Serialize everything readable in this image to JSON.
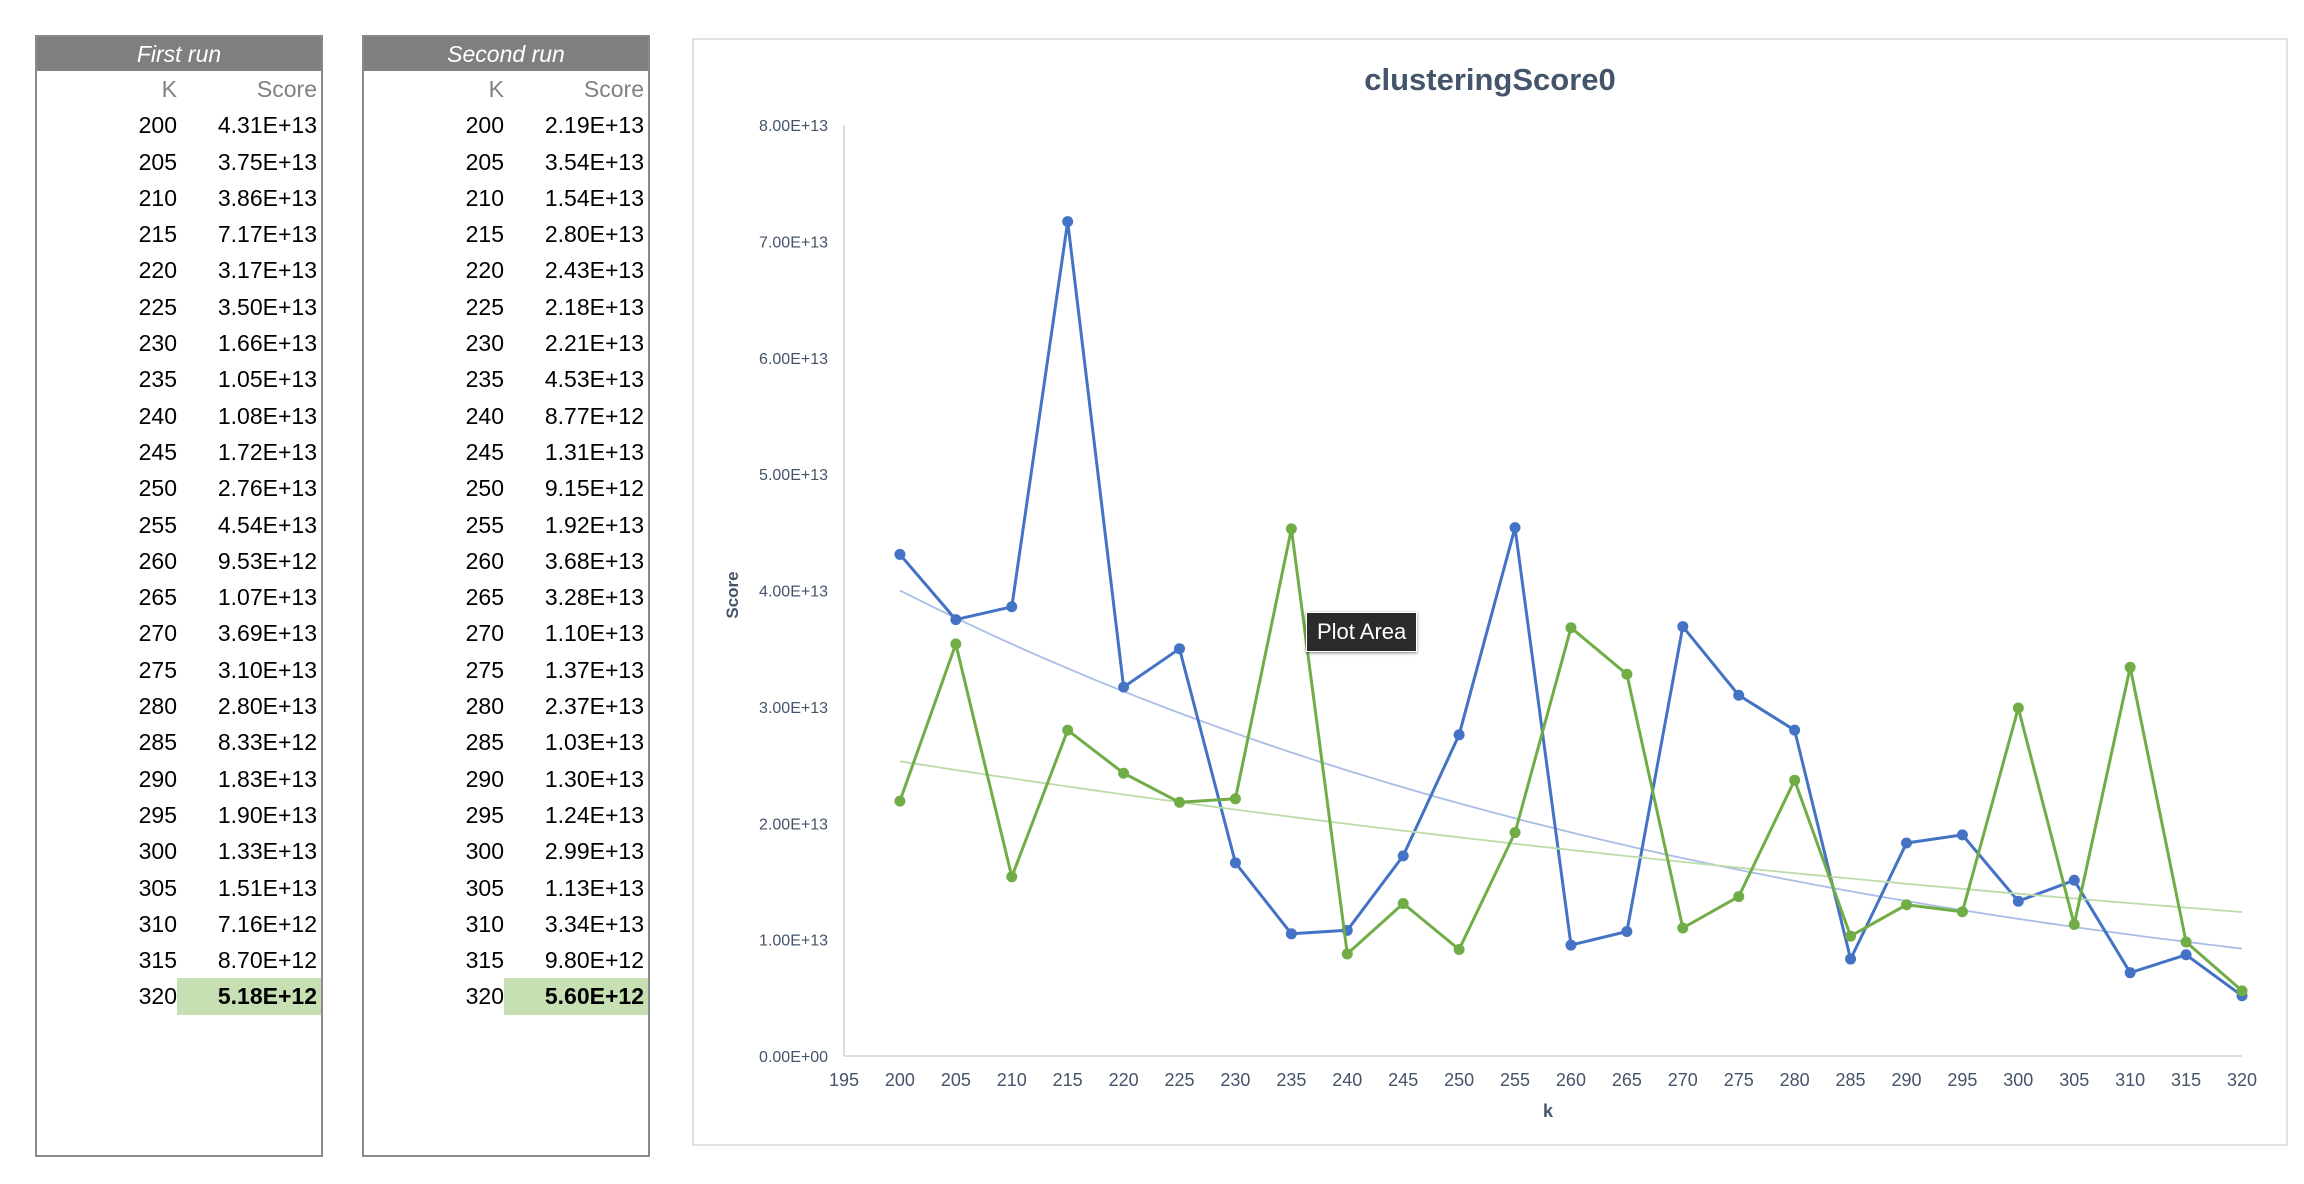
{
  "tables": [
    {
      "title": "First run",
      "col_k": "K",
      "col_score": "Score",
      "rows": [
        {
          "k": "200",
          "score": "4.31E+13"
        },
        {
          "k": "205",
          "score": "3.75E+13"
        },
        {
          "k": "210",
          "score": "3.86E+13"
        },
        {
          "k": "215",
          "score": "7.17E+13"
        },
        {
          "k": "220",
          "score": "3.17E+13"
        },
        {
          "k": "225",
          "score": "3.50E+13"
        },
        {
          "k": "230",
          "score": "1.66E+13"
        },
        {
          "k": "235",
          "score": "1.05E+13"
        },
        {
          "k": "240",
          "score": "1.08E+13"
        },
        {
          "k": "245",
          "score": "1.72E+13"
        },
        {
          "k": "250",
          "score": "2.76E+13"
        },
        {
          "k": "255",
          "score": "4.54E+13"
        },
        {
          "k": "260",
          "score": "9.53E+12"
        },
        {
          "k": "265",
          "score": "1.07E+13"
        },
        {
          "k": "270",
          "score": "3.69E+13"
        },
        {
          "k": "275",
          "score": "3.10E+13"
        },
        {
          "k": "280",
          "score": "2.80E+13"
        },
        {
          "k": "285",
          "score": "8.33E+12"
        },
        {
          "k": "290",
          "score": "1.83E+13"
        },
        {
          "k": "295",
          "score": "1.90E+13"
        },
        {
          "k": "300",
          "score": "1.33E+13"
        },
        {
          "k": "305",
          "score": "1.51E+13"
        },
        {
          "k": "310",
          "score": "7.16E+12"
        },
        {
          "k": "315",
          "score": "8.70E+12"
        },
        {
          "k": "320",
          "score": "5.18E+12"
        }
      ]
    },
    {
      "title": "Second run",
      "col_k": "K",
      "col_score": "Score",
      "rows": [
        {
          "k": "200",
          "score": "2.19E+13"
        },
        {
          "k": "205",
          "score": "3.54E+13"
        },
        {
          "k": "210",
          "score": "1.54E+13"
        },
        {
          "k": "215",
          "score": "2.80E+13"
        },
        {
          "k": "220",
          "score": "2.43E+13"
        },
        {
          "k": "225",
          "score": "2.18E+13"
        },
        {
          "k": "230",
          "score": "2.21E+13"
        },
        {
          "k": "235",
          "score": "4.53E+13"
        },
        {
          "k": "240",
          "score": "8.77E+12"
        },
        {
          "k": "245",
          "score": "1.31E+13"
        },
        {
          "k": "250",
          "score": "9.15E+12"
        },
        {
          "k": "255",
          "score": "1.92E+13"
        },
        {
          "k": "260",
          "score": "3.68E+13"
        },
        {
          "k": "265",
          "score": "3.28E+13"
        },
        {
          "k": "270",
          "score": "1.10E+13"
        },
        {
          "k": "275",
          "score": "1.37E+13"
        },
        {
          "k": "280",
          "score": "2.37E+13"
        },
        {
          "k": "285",
          "score": "1.03E+13"
        },
        {
          "k": "290",
          "score": "1.30E+13"
        },
        {
          "k": "295",
          "score": "1.24E+13"
        },
        {
          "k": "300",
          "score": "2.99E+13"
        },
        {
          "k": "305",
          "score": "1.13E+13"
        },
        {
          "k": "310",
          "score": "3.34E+13"
        },
        {
          "k": "315",
          "score": "9.80E+12"
        },
        {
          "k": "320",
          "score": "5.60E+12"
        }
      ]
    }
  ],
  "tooltip": "Plot Area",
  "chart_data": {
    "type": "line",
    "title": "clusteringScore0",
    "xlabel": "k",
    "ylabel": "Score",
    "xlim": [
      195,
      320
    ],
    "ylim": [
      0,
      80000000000000.0
    ],
    "x_ticks": [
      "195",
      "200",
      "205",
      "210",
      "215",
      "220",
      "225",
      "230",
      "235",
      "240",
      "245",
      "250",
      "255",
      "260",
      "265",
      "270",
      "275",
      "280",
      "285",
      "290",
      "295",
      "300",
      "305",
      "310",
      "315",
      "320"
    ],
    "y_ticks": [
      "0.00E+00",
      "1.00E+13",
      "2.00E+13",
      "3.00E+13",
      "4.00E+13",
      "5.00E+13",
      "6.00E+13",
      "7.00E+13",
      "8.00E+13"
    ],
    "x": [
      200,
      205,
      210,
      215,
      220,
      225,
      230,
      235,
      240,
      245,
      250,
      255,
      260,
      265,
      270,
      275,
      280,
      285,
      290,
      295,
      300,
      305,
      310,
      315,
      320
    ],
    "series": [
      {
        "color": "#4472c4",
        "trend_color": "#a9bde6",
        "values": [
          43100000000000.0,
          37500000000000.0,
          38600000000000.0,
          71700000000000.0,
          31700000000000.0,
          35000000000000.0,
          16600000000000.0,
          10500000000000.0,
          10800000000000.0,
          17200000000000.0,
          27600000000000.0,
          45400000000000.0,
          9530000000000.0,
          10700000000000.0,
          36900000000000.0,
          31000000000000.0,
          28000000000000.0,
          8330000000000.0,
          18300000000000.0,
          19000000000000.0,
          13300000000000.0,
          15100000000000.0,
          7160000000000.0,
          8700000000000.0,
          5180000000000.0
        ]
      },
      {
        "color": "#70ad47",
        "trend_color": "#bcdcaa",
        "values": [
          21900000000000.0,
          35400000000000.0,
          15400000000000.0,
          28000000000000.0,
          24300000000000.0,
          21800000000000.0,
          22100000000000.0,
          45300000000000.0,
          8770000000000.0,
          13100000000000.0,
          9150000000000.0,
          19200000000000.0,
          36800000000000.0,
          32800000000000.0,
          11000000000000.0,
          13700000000000.0,
          23700000000000.0,
          10300000000000.0,
          13000000000000.0,
          12400000000000.0,
          29900000000000.0,
          11300000000000.0,
          33400000000000.0,
          9800000000000.0,
          5600000000000.0
        ]
      }
    ],
    "grid": false,
    "legend": "none"
  }
}
